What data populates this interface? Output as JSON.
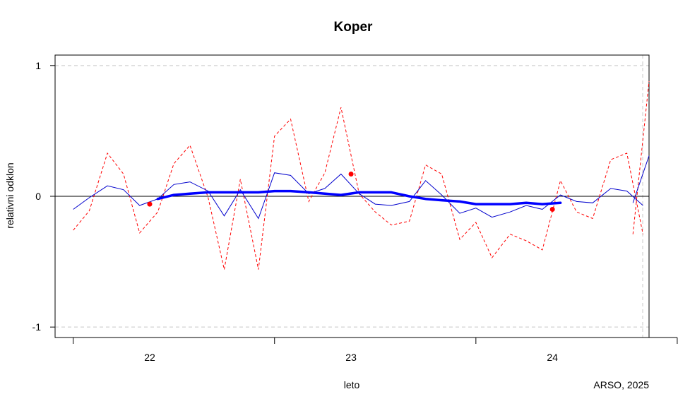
{
  "chart_data": {
    "type": "line",
    "title": "Koper",
    "xlabel": "leto",
    "ylabel": "relativni odklon",
    "credit": "ARSO, 2025",
    "xlim": [
      21.53,
      24.48
    ],
    "ylim": [
      -1.08,
      1.08
    ],
    "x_ticks": [
      {
        "value": 22,
        "label": "22"
      },
      {
        "value": 23,
        "label": "23"
      },
      {
        "value": 24,
        "label": "24"
      }
    ],
    "x_tick_marks": [
      21.62,
      22.62,
      23.62,
      24.62
    ],
    "y_ticks": [
      {
        "value": 1,
        "label": "1"
      },
      {
        "value": 0,
        "label": "0"
      },
      {
        "value": -1,
        "label": "-1"
      }
    ],
    "grid": {
      "horizontal_dashed_at": [
        1,
        -1
      ]
    },
    "reference_line": 0,
    "colors": {
      "blue": "#0000ff",
      "navy": "#0000cd",
      "red": "#ff0000",
      "grid": "#c8c8c8"
    },
    "series": [
      {
        "style": "thin solid blue",
        "x": [
          21.62,
          21.7,
          21.79,
          21.87,
          21.95,
          22.04,
          22.12,
          22.2,
          22.29,
          22.37,
          22.45,
          22.54,
          22.62,
          22.7,
          22.79,
          22.87,
          22.95,
          23.04,
          23.12,
          23.2,
          23.29,
          23.37,
          23.45,
          23.54,
          23.62,
          23.7,
          23.79,
          23.87,
          23.95,
          24.04,
          24.12,
          24.2,
          24.29,
          24.37,
          24.45
        ],
        "values": [
          -0.1,
          -0.01,
          0.08,
          0.05,
          -0.07,
          -0.02,
          0.09,
          0.11,
          0.04,
          -0.15,
          0.05,
          -0.17,
          0.18,
          0.16,
          0.02,
          0.06,
          0.17,
          0.02,
          -0.06,
          -0.07,
          -0.04,
          0.12,
          0.01,
          -0.13,
          -0.09,
          -0.16,
          -0.12,
          -0.07,
          -0.1,
          0.01,
          -0.04,
          -0.05,
          0.06,
          0.04,
          -0.07
        ]
      },
      {
        "style": "dashed red",
        "x": [
          21.62,
          21.7,
          21.79,
          21.87,
          21.95,
          22.04,
          22.12,
          22.2,
          22.29,
          22.37,
          22.45,
          22.54,
          22.62,
          22.7,
          22.79,
          22.87,
          22.95,
          23.04,
          23.12,
          23.2,
          23.29,
          23.37,
          23.45,
          23.54,
          23.62,
          23.7,
          23.79,
          23.87,
          23.95,
          24.04,
          24.12,
          24.2,
          24.29,
          24.37,
          24.45
        ],
        "values": [
          -0.26,
          -0.11,
          0.33,
          0.17,
          -0.28,
          -0.12,
          0.25,
          0.39,
          -0.01,
          -0.56,
          0.13,
          -0.56,
          0.46,
          0.59,
          -0.04,
          0.18,
          0.68,
          0.02,
          -0.12,
          -0.22,
          -0.19,
          0.24,
          0.17,
          -0.33,
          -0.2,
          -0.47,
          -0.29,
          -0.34,
          -0.41,
          0.12,
          -0.12,
          -0.17,
          0.28,
          0.33,
          -0.29
        ]
      },
      {
        "style": "thick solid blue (trend)",
        "x": [
          22.04,
          22.12,
          22.2,
          22.29,
          22.37,
          22.45,
          22.54,
          22.62,
          22.7,
          22.79,
          22.87,
          22.95,
          23.04,
          23.12,
          23.2,
          23.29,
          23.37,
          23.45,
          23.54,
          23.62,
          23.7,
          23.79,
          23.87,
          23.95,
          24.04
        ],
        "values": [
          -0.02,
          0.01,
          0.02,
          0.03,
          0.03,
          0.03,
          0.03,
          0.04,
          0.04,
          0.03,
          0.02,
          0.01,
          0.03,
          0.03,
          0.03,
          0.0,
          -0.02,
          -0.03,
          -0.04,
          -0.06,
          -0.06,
          -0.06,
          -0.05,
          -0.06,
          -0.05
        ]
      },
      {
        "style": "red points",
        "x": [
          22.0,
          23.0,
          24.0
        ],
        "values": [
          -0.06,
          0.17,
          -0.1
        ]
      }
    ],
    "tail_segment": {
      "blue": {
        "x": [
          24.4,
          24.48
        ],
        "values": [
          -0.05,
          0.31
        ]
      },
      "red": {
        "x": [
          24.4,
          24.48
        ],
        "values": [
          -0.29,
          0.88
        ]
      }
    }
  }
}
